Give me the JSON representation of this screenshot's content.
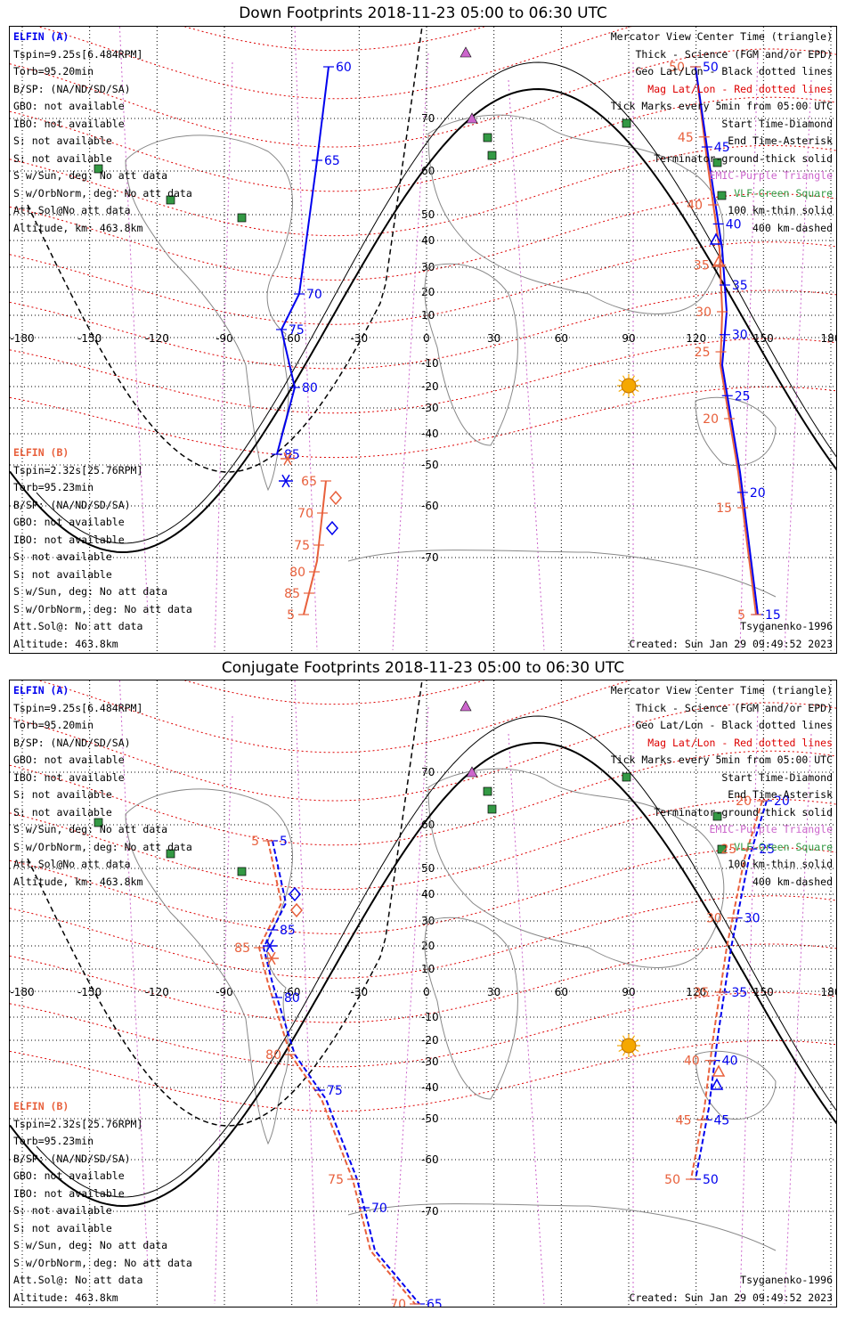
{
  "colors": {
    "elfin_a": "#0000ee",
    "elfin_b": "#e8603c",
    "grid_geo": "#000000",
    "grid_mag": "#dd0000",
    "terminator": "#000000",
    "emic": "#cc66cc",
    "vlf": "#339944",
    "sun": "#f5a800",
    "coast": "#888888"
  },
  "common": {
    "elfin_a_info": [
      "ELFIN (A)",
      "Tspin=9.25s[6.484RPM]",
      "Torb=95.20min",
      "B/SP: (NA/ND/SD/SA)",
      "GBO: not available",
      "IBO: not available",
      "S: not available",
      "S: not available",
      "S w/Sun, deg: No att data",
      "S w/OrbNorm, deg: No att data",
      "Att.Sol@No att data",
      "Altitude, km: 463.8km"
    ],
    "elfin_b_info": [
      "ELFIN (B)",
      "Tspin=2.32s[25.76RPM]",
      "Torb=95.23min",
      "B/SP: (NA/ND/SD/SA)",
      "GBO: not available",
      "IBO: not available",
      "S: not available",
      "S: not available",
      "S w/Sun, deg: No att data",
      "S w/OrbNorm, deg: No att data",
      "Att.Sol@: No att data",
      "Altitude: 463.8km"
    ],
    "legend": [
      {
        "text": "Mercator View Center Time (triangle)",
        "color": "#000000"
      },
      {
        "text": "Thick - Science (FGM and/or EPD)",
        "color": "#000000"
      },
      {
        "text": "Geo Lat/Lon - Black dotted lines",
        "color": "#000000"
      },
      {
        "text": "Mag Lat/Lon - Red dotted lines",
        "color": "#dd0000"
      },
      {
        "text": "Tick Marks every 5min from 05:00 UTC",
        "color": "#000000"
      },
      {
        "text": "Start Time-Diamond",
        "color": "#000000"
      },
      {
        "text": "End Time-Asterisk",
        "color": "#000000"
      },
      {
        "text": "Terminator-ground-thick solid",
        "color": "#000000"
      },
      {
        "text": "EMIC-Purple Triangle",
        "color": "#cc66cc"
      },
      {
        "text": "VLF-Green Square",
        "color": "#339944"
      },
      {
        "text": "100 km-thin solid",
        "color": "#000000"
      },
      {
        "text": "400 km-dashed",
        "color": "#000000"
      }
    ],
    "model": "Tsyganenko-1996",
    "created": "Created: Sun Jan 29 09:49:52 2023",
    "lon_ticks": [
      "-180",
      "-150",
      "-120",
      "-90",
      "-60",
      "-30",
      "0",
      "30",
      "60",
      "90",
      "120",
      "150",
      "180"
    ],
    "lat_ticks": [
      "70",
      "60",
      "50",
      "40",
      "30",
      "20",
      "10",
      "0",
      "-10",
      "-20",
      "-30",
      "-40",
      "-50",
      "-60",
      "-70"
    ]
  },
  "panels": [
    {
      "title": "Down Footprints 2018-11-23 05:00 to 06:30 UTC",
      "track_a_labels": [
        "60",
        "65",
        "70",
        "75",
        "80",
        "85",
        "50",
        "45",
        "40",
        "35",
        "30",
        "25",
        "20",
        "15"
      ],
      "track_b_labels": [
        "65",
        "70",
        "75",
        "80",
        "85",
        "5",
        "50",
        "45",
        "40",
        "35",
        "30",
        "25",
        "20",
        "15",
        "5"
      ]
    },
    {
      "title": "Conjugate Footprints 2018-11-23 05:00 to 06:30 UTC",
      "track_a_labels": [
        "5",
        "85",
        "80",
        "75",
        "70",
        "65",
        "20",
        "25",
        "30",
        "35",
        "40",
        "45",
        "50"
      ],
      "track_b_labels": [
        "5",
        "85",
        "80",
        "75",
        "70",
        "20",
        "25",
        "30",
        "35",
        "40",
        "45",
        "50"
      ]
    }
  ]
}
